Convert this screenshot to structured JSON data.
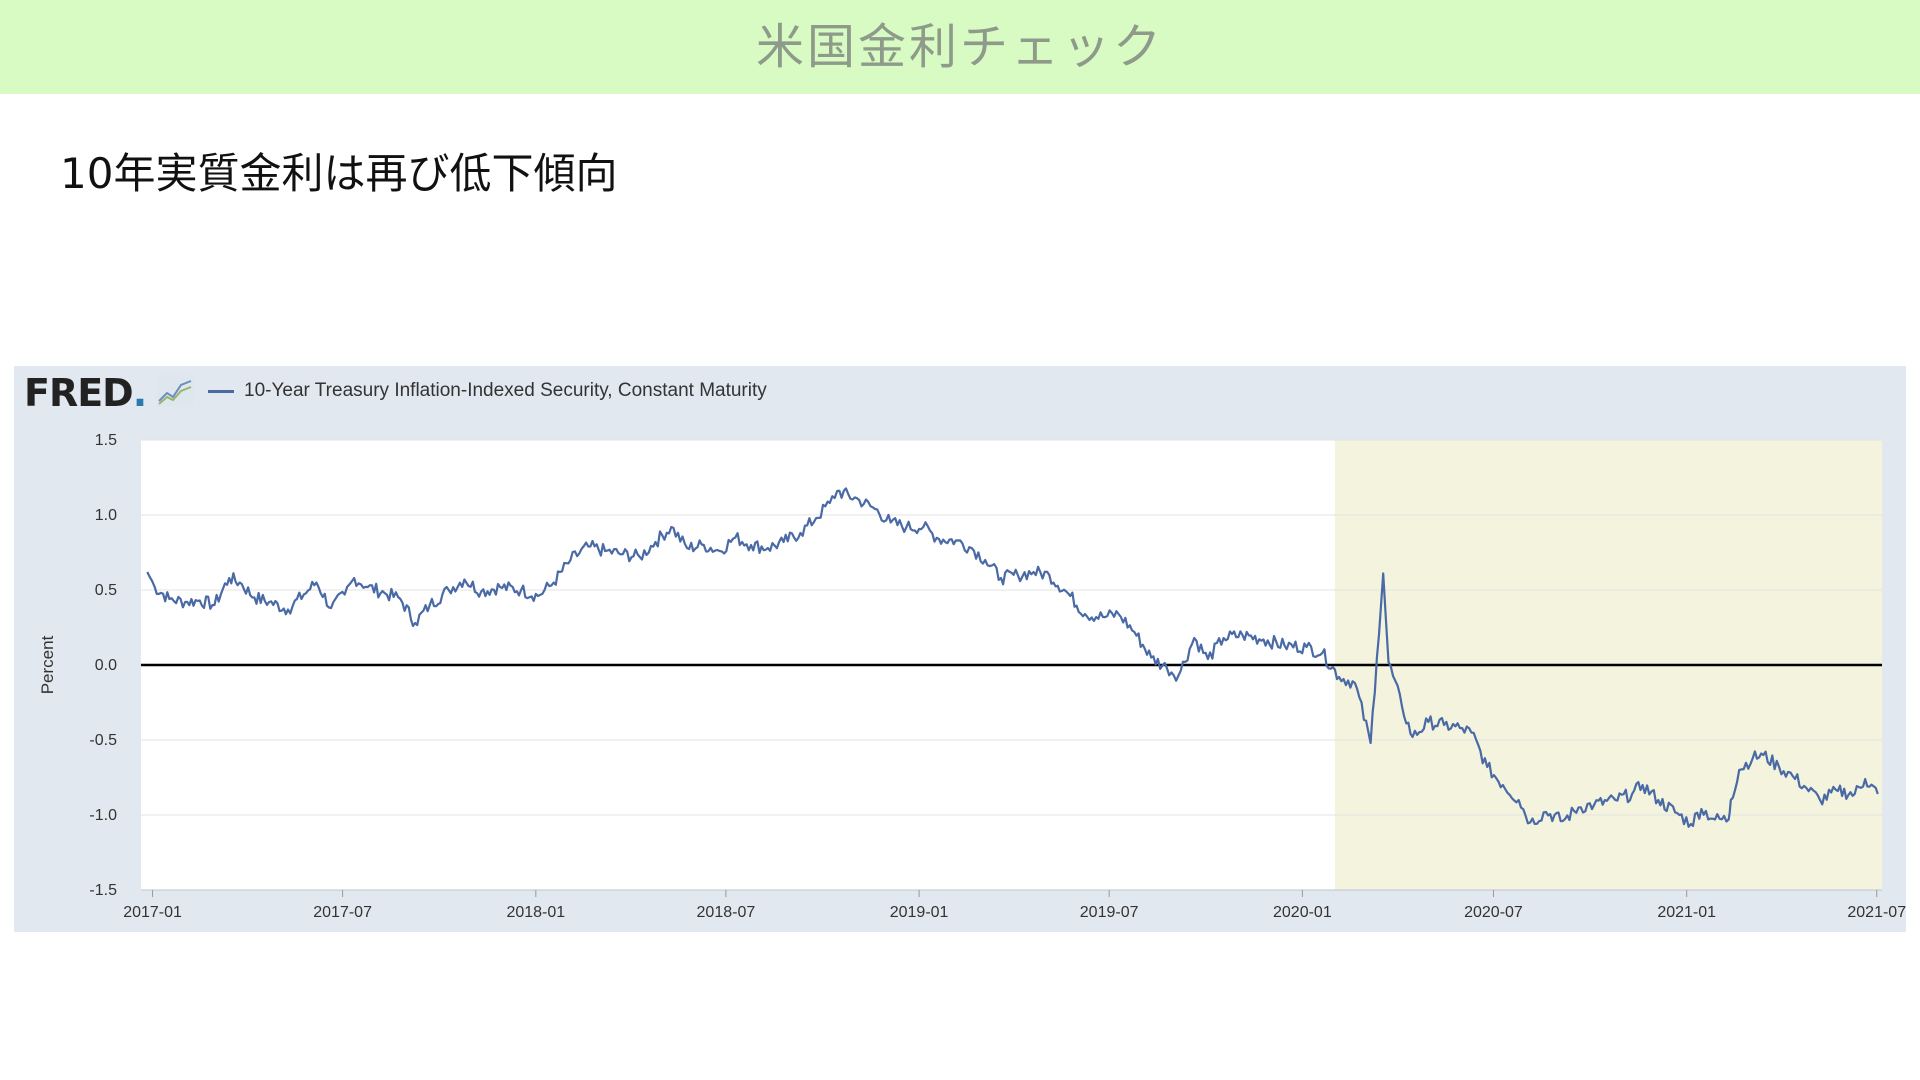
{
  "header": {
    "title": "米国金利チェック"
  },
  "slide": {
    "subtitle": "10年実質金利は再び低下傾向"
  },
  "brand": {
    "logo_text": "FRED",
    "logo_suffix": "."
  },
  "colors": {
    "banner": "#d8fac3",
    "series": "#4a6aa5",
    "recession": "#f3f3de",
    "panel": "#e2e8ef"
  },
  "chart_data": {
    "type": "line",
    "title": "",
    "xlabel": "",
    "ylabel": "Percent",
    "ylim": [
      -1.5,
      1.5
    ],
    "yticks": [
      "1.5",
      "1.0",
      "0.5",
      "0.0",
      "-0.5",
      "-1.0",
      "-1.5"
    ],
    "xticks": [
      "2017-01",
      "2017-07",
      "2018-01",
      "2018-07",
      "2019-01",
      "2019-07",
      "2020-01",
      "2020-07",
      "2021-01",
      "2021-07"
    ],
    "xlim": [
      "2017-01",
      "2021-07"
    ],
    "grid": true,
    "zero_line": true,
    "shaded_region": {
      "start": "2020-02",
      "end": "2021-07"
    },
    "legend_position": "top-left",
    "series": [
      {
        "name": "10-Year Treasury Inflation-Indexed Security, Constant Maturity",
        "points": [
          [
            "2016-12-27",
            0.62
          ],
          [
            "2017-01-03",
            0.52
          ],
          [
            "2017-01-17",
            0.44
          ],
          [
            "2017-02-01",
            0.42
          ],
          [
            "2017-02-15",
            0.43
          ],
          [
            "2017-03-01",
            0.4
          ],
          [
            "2017-03-15",
            0.58
          ],
          [
            "2017-03-25",
            0.55
          ],
          [
            "2017-04-08",
            0.45
          ],
          [
            "2017-04-22",
            0.42
          ],
          [
            "2017-05-10",
            0.37
          ],
          [
            "2017-05-25",
            0.47
          ],
          [
            "2017-06-06",
            0.55
          ],
          [
            "2017-06-20",
            0.38
          ],
          [
            "2017-07-03",
            0.47
          ],
          [
            "2017-07-12",
            0.58
          ],
          [
            "2017-07-25",
            0.52
          ],
          [
            "2017-08-10",
            0.48
          ],
          [
            "2017-08-25",
            0.44
          ],
          [
            "2017-09-08",
            0.28
          ],
          [
            "2017-09-22",
            0.4
          ],
          [
            "2017-10-10",
            0.5
          ],
          [
            "2017-10-25",
            0.57
          ],
          [
            "2017-11-10",
            0.49
          ],
          [
            "2017-11-28",
            0.52
          ],
          [
            "2017-12-18",
            0.5
          ],
          [
            "2018-01-03",
            0.46
          ],
          [
            "2018-01-18",
            0.55
          ],
          [
            "2018-02-03",
            0.7
          ],
          [
            "2018-02-20",
            0.79
          ],
          [
            "2018-03-08",
            0.76
          ],
          [
            "2018-03-25",
            0.74
          ],
          [
            "2018-04-10",
            0.72
          ],
          [
            "2018-04-25",
            0.82
          ],
          [
            "2018-05-10",
            0.92
          ],
          [
            "2018-05-25",
            0.78
          ],
          [
            "2018-06-10",
            0.8
          ],
          [
            "2018-06-25",
            0.76
          ],
          [
            "2018-07-10",
            0.85
          ],
          [
            "2018-07-25",
            0.8
          ],
          [
            "2018-08-10",
            0.78
          ],
          [
            "2018-08-25",
            0.82
          ],
          [
            "2018-09-10",
            0.88
          ],
          [
            "2018-09-25",
            0.98
          ],
          [
            "2018-10-08",
            1.08
          ],
          [
            "2018-10-15",
            1.16
          ],
          [
            "2018-11-05",
            1.1
          ],
          [
            "2018-11-20",
            1.04
          ],
          [
            "2018-12-05",
            0.95
          ],
          [
            "2018-12-20",
            0.92
          ],
          [
            "2019-01-05",
            0.92
          ],
          [
            "2019-01-20",
            0.84
          ],
          [
            "2019-02-05",
            0.83
          ],
          [
            "2019-02-20",
            0.78
          ],
          [
            "2019-03-05",
            0.7
          ],
          [
            "2019-03-20",
            0.58
          ],
          [
            "2019-04-05",
            0.6
          ],
          [
            "2019-04-20",
            0.62
          ],
          [
            "2019-05-05",
            0.6
          ],
          [
            "2019-05-25",
            0.46
          ],
          [
            "2019-06-08",
            0.34
          ],
          [
            "2019-06-25",
            0.32
          ],
          [
            "2019-07-10",
            0.34
          ],
          [
            "2019-07-25",
            0.22
          ],
          [
            "2019-08-10",
            0.05
          ],
          [
            "2019-08-25",
            -0.02
          ],
          [
            "2019-09-05",
            -0.07
          ],
          [
            "2019-09-20",
            0.18
          ],
          [
            "2019-10-03",
            0.04
          ],
          [
            "2019-10-18",
            0.18
          ],
          [
            "2019-11-05",
            0.2
          ],
          [
            "2019-11-25",
            0.17
          ],
          [
            "2019-12-15",
            0.13
          ],
          [
            "2020-01-05",
            0.12
          ],
          [
            "2020-01-20",
            0.08
          ],
          [
            "2020-02-05",
            -0.08
          ],
          [
            "2020-02-20",
            -0.12
          ],
          [
            "2020-03-06",
            -0.52
          ],
          [
            "2020-03-12",
            0.05
          ],
          [
            "2020-03-18",
            0.61
          ],
          [
            "2020-03-23",
            0.02
          ],
          [
            "2020-04-05",
            -0.28
          ],
          [
            "2020-04-15",
            -0.48
          ],
          [
            "2020-04-30",
            -0.38
          ],
          [
            "2020-05-15",
            -0.4
          ],
          [
            "2020-05-30",
            -0.42
          ],
          [
            "2020-06-10",
            -0.45
          ],
          [
            "2020-06-25",
            -0.68
          ],
          [
            "2020-07-10",
            -0.8
          ],
          [
            "2020-07-25",
            -0.9
          ],
          [
            "2020-08-05",
            -1.05
          ],
          [
            "2020-08-20",
            -0.98
          ],
          [
            "2020-09-05",
            -1.04
          ],
          [
            "2020-09-20",
            -0.95
          ],
          [
            "2020-10-05",
            -0.93
          ],
          [
            "2020-10-25",
            -0.9
          ],
          [
            "2020-11-10",
            -0.86
          ],
          [
            "2020-11-20",
            -0.8
          ],
          [
            "2020-12-05",
            -0.9
          ],
          [
            "2020-12-25",
            -1.0
          ],
          [
            "2021-01-05",
            -1.06
          ],
          [
            "2021-01-15",
            -0.96
          ],
          [
            "2021-01-28",
            -1.03
          ],
          [
            "2021-02-10",
            -1.03
          ],
          [
            "2021-02-12",
            -0.9
          ],
          [
            "2021-02-20",
            -0.7
          ],
          [
            "2021-03-05",
            -0.62
          ],
          [
            "2021-03-15",
            -0.6
          ],
          [
            "2021-03-30",
            -0.68
          ],
          [
            "2021-04-12",
            -0.74
          ],
          [
            "2021-04-25",
            -0.82
          ],
          [
            "2021-05-08",
            -0.9
          ],
          [
            "2021-05-25",
            -0.84
          ],
          [
            "2021-06-10",
            -0.86
          ],
          [
            "2021-06-20",
            -0.76
          ],
          [
            "2021-07-02",
            -0.86
          ]
        ]
      }
    ]
  }
}
